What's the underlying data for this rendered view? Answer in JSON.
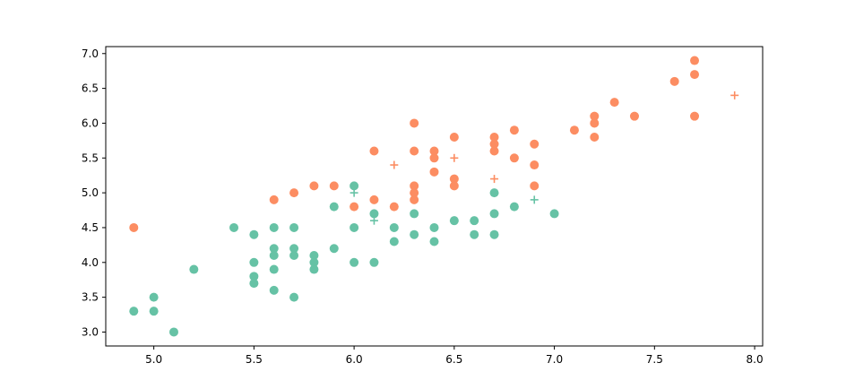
{
  "chart_data": {
    "type": "scatter",
    "title": "",
    "xlabel": "",
    "ylabel": "",
    "xlim": [
      4.76,
      8.04
    ],
    "ylim": [
      2.8,
      7.1
    ],
    "xticks": [
      5.0,
      5.5,
      6.0,
      6.5,
      7.0,
      7.5,
      8.0
    ],
    "xtick_labels": [
      "5.0",
      "5.5",
      "6.0",
      "6.5",
      "7.0",
      "7.5",
      "8.0"
    ],
    "yticks": [
      3.0,
      3.5,
      4.0,
      4.5,
      5.0,
      5.5,
      6.0,
      6.5,
      7.0
    ],
    "ytick_labels": [
      "3.0",
      "3.5",
      "4.0",
      "4.5",
      "5.0",
      "5.5",
      "6.0",
      "6.5",
      "7.0"
    ],
    "grid": false,
    "legend": "none",
    "series": [
      {
        "color": "#66c2a5",
        "marker": "circle",
        "points": [
          [
            4.9,
            3.3
          ],
          [
            5.0,
            3.5
          ],
          [
            5.0,
            3.3
          ],
          [
            5.1,
            3.0
          ],
          [
            5.2,
            3.9
          ],
          [
            5.4,
            4.5
          ],
          [
            5.5,
            4.4
          ],
          [
            5.5,
            4.0
          ],
          [
            5.5,
            3.8
          ],
          [
            5.5,
            3.7
          ],
          [
            5.6,
            4.5
          ],
          [
            5.6,
            4.2
          ],
          [
            5.6,
            4.1
          ],
          [
            5.6,
            3.9
          ],
          [
            5.6,
            3.6
          ],
          [
            5.7,
            4.5
          ],
          [
            5.7,
            4.2
          ],
          [
            5.7,
            4.1
          ],
          [
            5.7,
            3.5
          ],
          [
            5.8,
            4.1
          ],
          [
            5.8,
            4.0
          ],
          [
            5.8,
            3.9
          ],
          [
            5.9,
            4.8
          ],
          [
            5.9,
            4.2
          ],
          [
            6.0,
            5.1
          ],
          [
            6.0,
            4.5
          ],
          [
            6.0,
            4.0
          ],
          [
            6.1,
            4.7
          ],
          [
            6.1,
            4.0
          ],
          [
            6.2,
            4.5
          ],
          [
            6.2,
            4.3
          ],
          [
            6.3,
            4.7
          ],
          [
            6.3,
            4.4
          ],
          [
            6.4,
            4.5
          ],
          [
            6.4,
            4.3
          ],
          [
            6.5,
            4.6
          ],
          [
            6.6,
            4.6
          ],
          [
            6.6,
            4.4
          ],
          [
            6.7,
            5.0
          ],
          [
            6.7,
            4.7
          ],
          [
            6.7,
            4.4
          ],
          [
            6.8,
            4.8
          ],
          [
            7.0,
            4.7
          ]
        ]
      },
      {
        "color": "#66c2a5",
        "marker": "plus",
        "points": [
          [
            6.0,
            5.0
          ],
          [
            6.1,
            4.6
          ],
          [
            6.9,
            4.9
          ]
        ]
      },
      {
        "color": "#fc8d62",
        "marker": "circle",
        "points": [
          [
            4.9,
            4.5
          ],
          [
            5.6,
            4.9
          ],
          [
            5.7,
            5.0
          ],
          [
            5.8,
            5.1
          ],
          [
            5.9,
            5.1
          ],
          [
            6.0,
            4.8
          ],
          [
            6.1,
            5.6
          ],
          [
            6.1,
            4.9
          ],
          [
            6.2,
            4.8
          ],
          [
            6.3,
            6.0
          ],
          [
            6.3,
            5.6
          ],
          [
            6.3,
            5.1
          ],
          [
            6.3,
            5.0
          ],
          [
            6.3,
            4.9
          ],
          [
            6.4,
            5.6
          ],
          [
            6.4,
            5.5
          ],
          [
            6.4,
            5.3
          ],
          [
            6.5,
            5.8
          ],
          [
            6.5,
            5.2
          ],
          [
            6.5,
            5.1
          ],
          [
            6.7,
            5.8
          ],
          [
            6.7,
            5.7
          ],
          [
            6.7,
            5.6
          ],
          [
            6.8,
            5.9
          ],
          [
            6.8,
            5.5
          ],
          [
            6.9,
            5.7
          ],
          [
            6.9,
            5.4
          ],
          [
            6.9,
            5.1
          ],
          [
            7.1,
            5.9
          ],
          [
            7.2,
            6.1
          ],
          [
            7.2,
            6.0
          ],
          [
            7.2,
            5.8
          ],
          [
            7.3,
            6.3
          ],
          [
            7.4,
            6.1
          ],
          [
            7.6,
            6.6
          ],
          [
            7.7,
            6.9
          ],
          [
            7.7,
            6.7
          ],
          [
            7.7,
            6.1
          ]
        ]
      },
      {
        "color": "#fc8d62",
        "marker": "plus",
        "points": [
          [
            6.2,
            5.4
          ],
          [
            6.5,
            5.5
          ],
          [
            6.7,
            5.2
          ],
          [
            7.9,
            6.4
          ]
        ]
      }
    ]
  }
}
